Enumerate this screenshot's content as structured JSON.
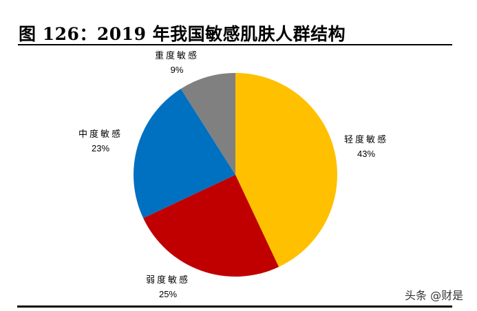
{
  "figure": {
    "title": "图 126：2019 年我国敏感肌肤人群结构"
  },
  "watermark": "头条 @财是",
  "chart_data": {
    "type": "pie",
    "title": "图 126：2019 年我国敏感肌肤人群结构",
    "start_angle": "12 o'clock",
    "direction": "clockwise",
    "categories": [
      "轻度敏感",
      "弱度敏感",
      "中度敏感",
      "重度敏感"
    ],
    "values": [
      43,
      25,
      23,
      9
    ],
    "unit": "%",
    "labels": [
      "43%",
      "25%",
      "23%",
      "9%"
    ],
    "colors": [
      "#FFC000",
      "#C00000",
      "#0070C0",
      "#808080"
    ],
    "legend": "none (data labels outside slices)"
  },
  "labels": [
    {
      "name": "轻度敏感",
      "pct": "43%"
    },
    {
      "name": "弱度敏感",
      "pct": "25%"
    },
    {
      "name": "中度敏感",
      "pct": "23%"
    },
    {
      "name": "重度敏感",
      "pct": "9%"
    }
  ]
}
